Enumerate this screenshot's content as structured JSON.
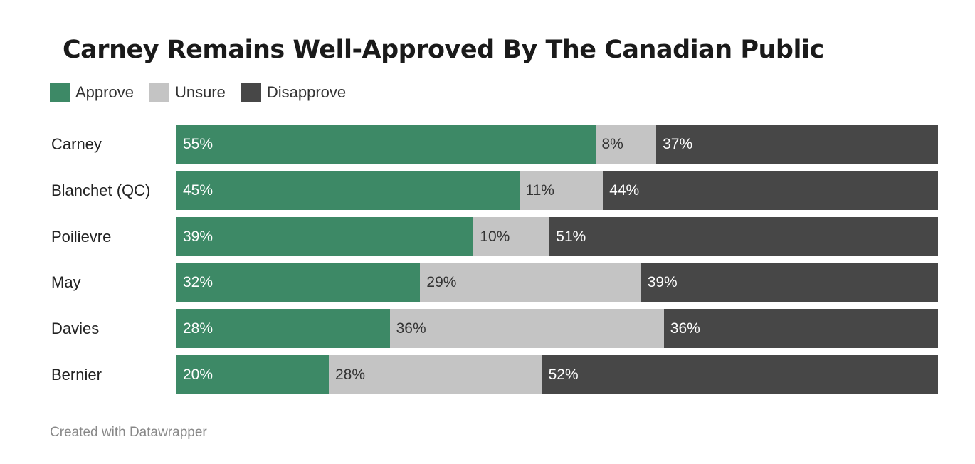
{
  "chart_data": {
    "type": "bar",
    "orientation": "horizontal-stacked",
    "title": "Carney Remains Well-Approved By The Canadian Public",
    "categories": [
      "Carney",
      "Blanchet (QC)",
      "Poilievre",
      "May",
      "Davies",
      "Bernier"
    ],
    "series": [
      {
        "name": "Approve",
        "color": "#3d8966",
        "label_color": "#ffffff",
        "values": [
          55,
          45,
          39,
          32,
          28,
          20
        ]
      },
      {
        "name": "Unsure",
        "color": "#c4c4c4",
        "label_color": "#333333",
        "values": [
          8,
          11,
          10,
          29,
          36,
          28
        ]
      },
      {
        "name": "Disapprove",
        "color": "#474747",
        "label_color": "#ffffff",
        "values": [
          37,
          44,
          51,
          39,
          36,
          52
        ]
      }
    ],
    "value_suffix": "%",
    "xlim": [
      0,
      100
    ],
    "legend": "top-left",
    "grid": false,
    "footer": "Created with Datawrapper"
  }
}
